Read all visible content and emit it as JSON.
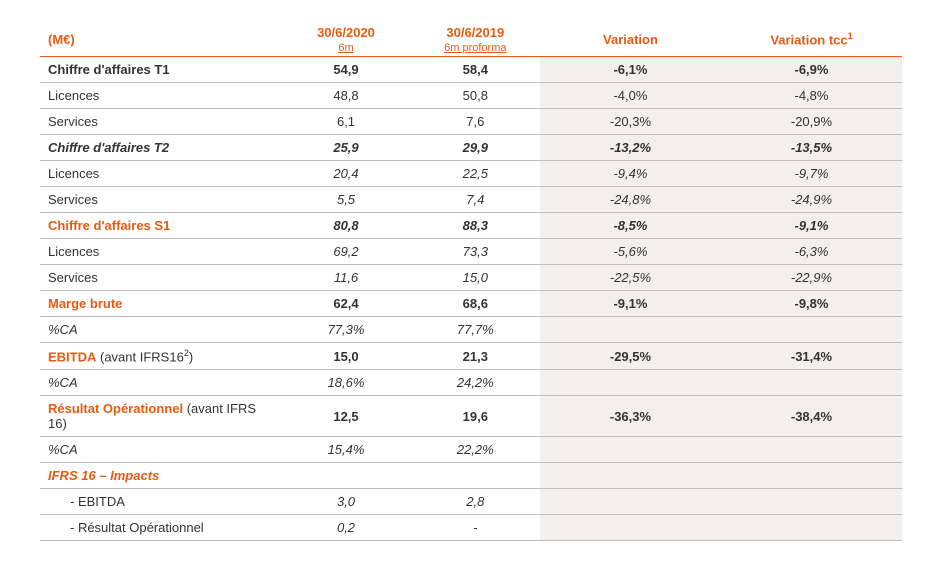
{
  "header": {
    "unit": "(M€)",
    "col1_main": "30/6/2020",
    "col1_sub": "6m",
    "col2_main": "30/6/2019",
    "col2_sub": "6m proforma",
    "col3": "Variation",
    "col4_prefix": "Variation tcc",
    "col4_sup": "1"
  },
  "rows": [
    {
      "label_parts": [
        {
          "text": "Chiffre d'affaires T1"
        }
      ],
      "v1": "54,9",
      "v2": "58,4",
      "v3": "-6,1%",
      "v4": "-6,9%",
      "label_cls": "bold",
      "vcls": "bold"
    },
    {
      "label_parts": [
        {
          "text": "Licences"
        }
      ],
      "v1": "48,8",
      "v2": "50,8",
      "v3": "-4,0%",
      "v4": "-4,8%"
    },
    {
      "label_parts": [
        {
          "text": "Services"
        }
      ],
      "v1": "6,1",
      "v2": "7,6",
      "v3": "-20,3%",
      "v4": "-20,9%"
    },
    {
      "label_parts": [
        {
          "text": "Chiffre d'affaires T2"
        }
      ],
      "v1": "25,9",
      "v2": "29,9",
      "v3": "-13,2%",
      "v4": "-13,5%",
      "label_cls": "bold italic",
      "vcls": "bold italic"
    },
    {
      "label_parts": [
        {
          "text": "Licences"
        }
      ],
      "v1": "20,4",
      "v2": "22,5",
      "v3": "-9,4%",
      "v4": "-9,7%",
      "vcls": "italic"
    },
    {
      "label_parts": [
        {
          "text": "Services"
        }
      ],
      "v1": "5,5",
      "v2": "7,4",
      "v3": "-24,8%",
      "v4": "-24,9%",
      "vcls": "italic"
    },
    {
      "label_parts": [
        {
          "text": "Chiffre d'affaires S1",
          "orange": true,
          "bold": true
        }
      ],
      "v1": "80,8",
      "v2": "88,3",
      "v3": "-8,5%",
      "v4": "-9,1%",
      "vcls": "bold italic"
    },
    {
      "label_parts": [
        {
          "text": "Licences"
        }
      ],
      "v1": "69,2",
      "v2": "73,3",
      "v3": "-5,6%",
      "v4": "-6,3%",
      "vcls": "italic"
    },
    {
      "label_parts": [
        {
          "text": "Services"
        }
      ],
      "v1": "11,6",
      "v2": "15,0",
      "v3": "-22,5%",
      "v4": "-22,9%",
      "vcls": "italic"
    },
    {
      "label_parts": [
        {
          "text": "Marge brute",
          "orange": true,
          "bold": true
        }
      ],
      "v1": "62,4",
      "v2": "68,6",
      "v3": "-9,1%",
      "v4": "-9,8%",
      "vcls": "bold"
    },
    {
      "label_parts": [
        {
          "text": "%CA",
          "italic": true
        }
      ],
      "v1": "77,3%",
      "v2": "77,7%",
      "v3": "",
      "v4": "",
      "vcls": "italic"
    },
    {
      "label_parts": [
        {
          "text": "EBITDA",
          "orange": true,
          "bold": true
        },
        {
          "text": " (avant IFRS16"
        },
        {
          "text": "2",
          "sup": true
        },
        {
          "text": ")"
        }
      ],
      "v1": "15,0",
      "v2": "21,3",
      "v3": "-29,5%",
      "v4": "-31,4%",
      "vcls": "bold"
    },
    {
      "label_parts": [
        {
          "text": "%CA",
          "italic": true
        }
      ],
      "v1": "18,6%",
      "v2": "24,2%",
      "v3": "",
      "v4": "",
      "vcls": "italic"
    },
    {
      "label_parts": [
        {
          "text": "Résultat Opérationnel",
          "orange": true,
          "bold": true
        },
        {
          "text": " (avant IFRS 16)"
        }
      ],
      "v1": "12,5",
      "v2": "19,6",
      "v3": "-36,3%",
      "v4": "-38,4%",
      "vcls": "bold"
    },
    {
      "label_parts": [
        {
          "text": "%CA",
          "italic": true
        }
      ],
      "v1": "15,4%",
      "v2": "22,2%",
      "v3": "",
      "v4": "",
      "vcls": "italic"
    },
    {
      "label_parts": [
        {
          "text": "IFRS 16 – Impacts",
          "orange": true,
          "bold": true,
          "italic": true
        }
      ],
      "v1": "",
      "v2": "",
      "v3": "",
      "v4": ""
    },
    {
      "label_parts": [
        {
          "text": "-   EBITDA"
        }
      ],
      "v1": "3,0",
      "v2": "2,8",
      "v3": "",
      "v4": "",
      "label_cls": "indent",
      "vcls": "italic"
    },
    {
      "label_parts": [
        {
          "text": "-   Résultat Opérationnel"
        }
      ],
      "v1": "0,2",
      "v2": "-",
      "v3": "",
      "v4": "",
      "label_cls": "indent",
      "vcls": "italic"
    }
  ]
}
